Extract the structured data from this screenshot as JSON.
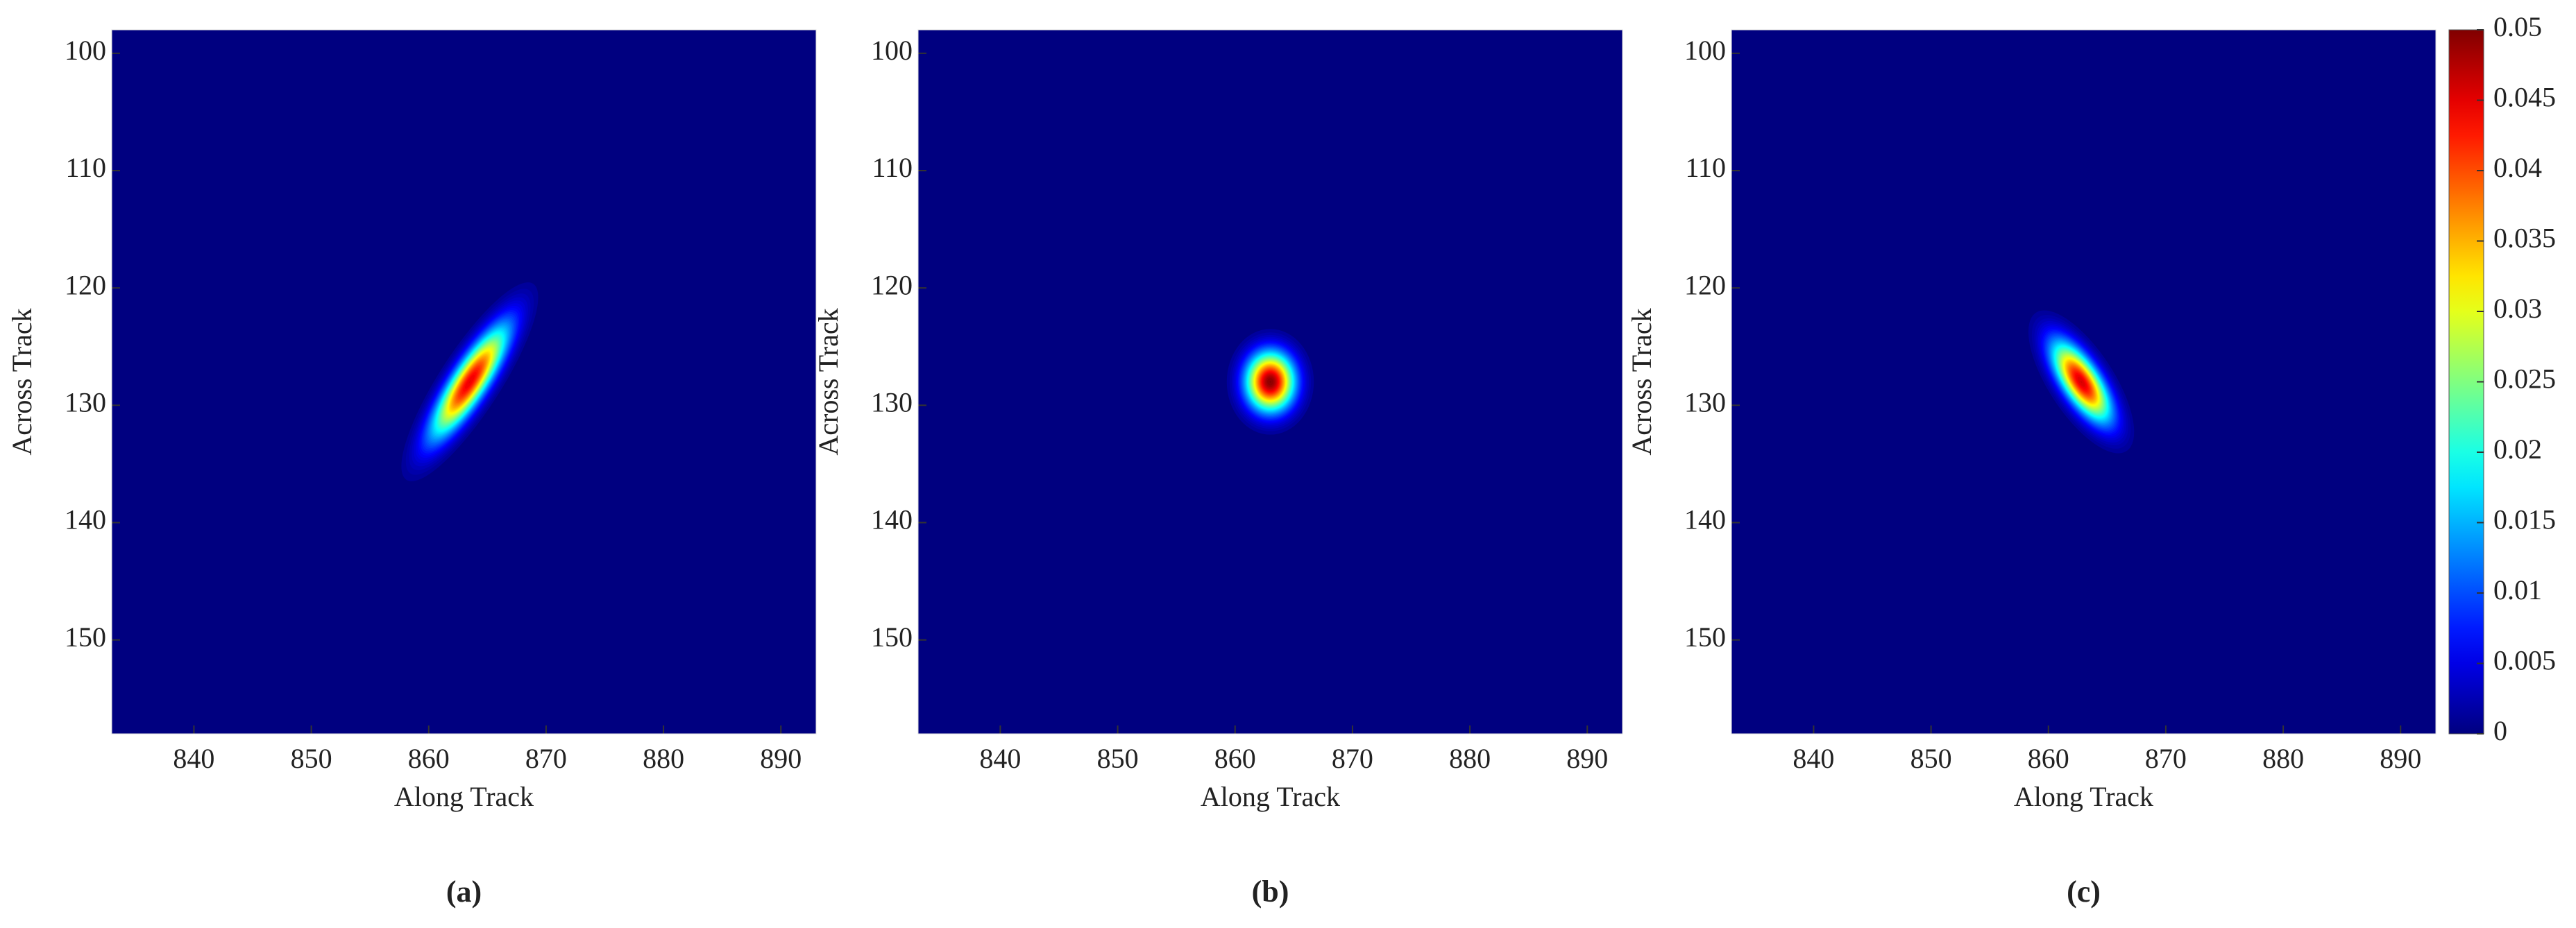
{
  "chart_data": [
    {
      "type": "heatmap",
      "caption": "(a)",
      "xlabel": "Along Track",
      "ylabel": "Across Track",
      "xlim": [
        833,
        893
      ],
      "xticks": [
        840,
        850,
        860,
        870,
        880,
        890
      ],
      "ylim": [
        158,
        98
      ],
      "yticks": [
        100,
        110,
        120,
        130,
        140,
        150
      ],
      "colormap": "jet",
      "clim": [
        0,
        0.05
      ],
      "peak": 0.045,
      "center": [
        863.5,
        128
      ],
      "sigma": [
        2.2,
        3.2
      ],
      "correlation": -0.85
    },
    {
      "type": "heatmap",
      "caption": "(b)",
      "xlabel": "Along Track",
      "ylabel": "Across Track",
      "xlim": [
        833,
        893
      ],
      "xticks": [
        840,
        850,
        860,
        870,
        880,
        890
      ],
      "ylim": [
        158,
        98
      ],
      "yticks": [
        100,
        110,
        120,
        130,
        140,
        150
      ],
      "colormap": "jet",
      "clim": [
        0,
        0.05
      ],
      "peak": 0.05,
      "center": [
        863,
        128
      ],
      "sigma": [
        1.4,
        1.7
      ],
      "correlation": 0
    },
    {
      "type": "heatmap",
      "caption": "(c)",
      "xlabel": "Along Track",
      "ylabel": "Across Track",
      "xlim": [
        833,
        893
      ],
      "xticks": [
        840,
        850,
        860,
        870,
        880,
        890
      ],
      "ylim": [
        158,
        98
      ],
      "yticks": [
        100,
        110,
        120,
        130,
        140,
        150
      ],
      "colormap": "jet",
      "clim": [
        0,
        0.05
      ],
      "peak": 0.046,
      "center": [
        862.8,
        128
      ],
      "sigma": [
        1.7,
        2.3
      ],
      "correlation": 0.7,
      "colorbar_ticks": [
        0,
        0.005,
        0.01,
        0.015,
        0.02,
        0.025,
        0.03,
        0.035,
        0.04,
        0.045,
        0.05
      ]
    }
  ]
}
